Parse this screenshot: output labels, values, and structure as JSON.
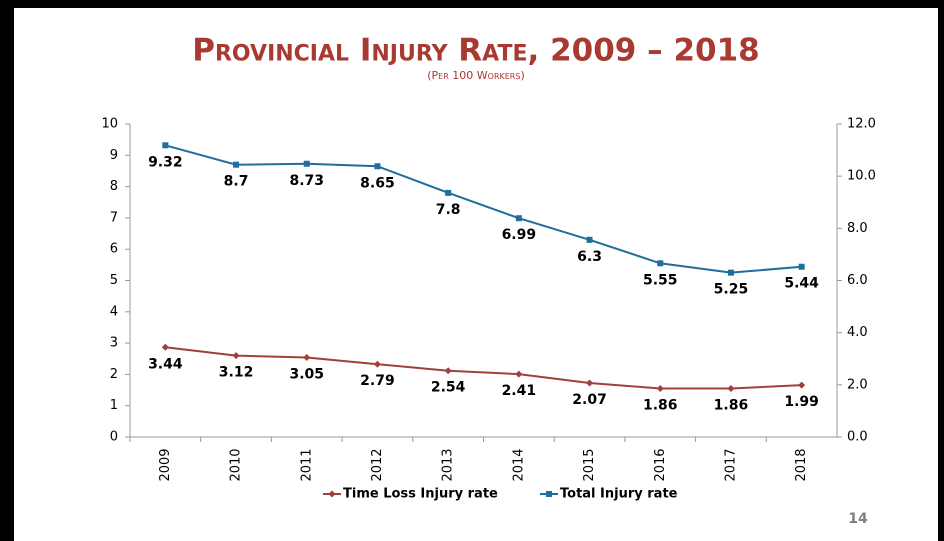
{
  "chart_data": {
    "type": "line",
    "title": "Provincial Injury Rate, 2009 – 2018",
    "subtitle": "(Per 100 Workers)",
    "categories": [
      "2009",
      "2010",
      "2011",
      "2012",
      "2013",
      "2014",
      "2015",
      "2016",
      "2017",
      "2018"
    ],
    "series": [
      {
        "name": "Time Loss Injury rate",
        "color": "#a0403a",
        "marker": "diamond",
        "axis": "y2",
        "values": [
          3.44,
          3.12,
          3.05,
          2.79,
          2.54,
          2.41,
          2.07,
          1.86,
          1.86,
          1.99
        ]
      },
      {
        "name": "Total Injury rate",
        "color": "#1f6e9c",
        "marker": "square",
        "values": [
          9.32,
          8.7,
          8.73,
          8.65,
          7.8,
          6.99,
          6.3,
          5.55,
          5.25,
          5.44
        ]
      }
    ],
    "ylim": [
      0,
      10
    ],
    "yticks": [
      0,
      1,
      2,
      3,
      4,
      5,
      6,
      7,
      8,
      9,
      10
    ],
    "y2lim": [
      0,
      12
    ],
    "y2ticks": [
      {
        "value": 0,
        "label": "0.0"
      },
      {
        "value": 2,
        "label": "2.0"
      },
      {
        "value": 4,
        "label": "4.0"
      },
      {
        "value": 6,
        "label": "6.0"
      },
      {
        "value": 8,
        "label": "8.0"
      },
      {
        "value": 10,
        "label": "10.0"
      },
      {
        "value": 12,
        "label": "12.0"
      }
    ],
    "legend": "bottom",
    "page_number": "14"
  }
}
